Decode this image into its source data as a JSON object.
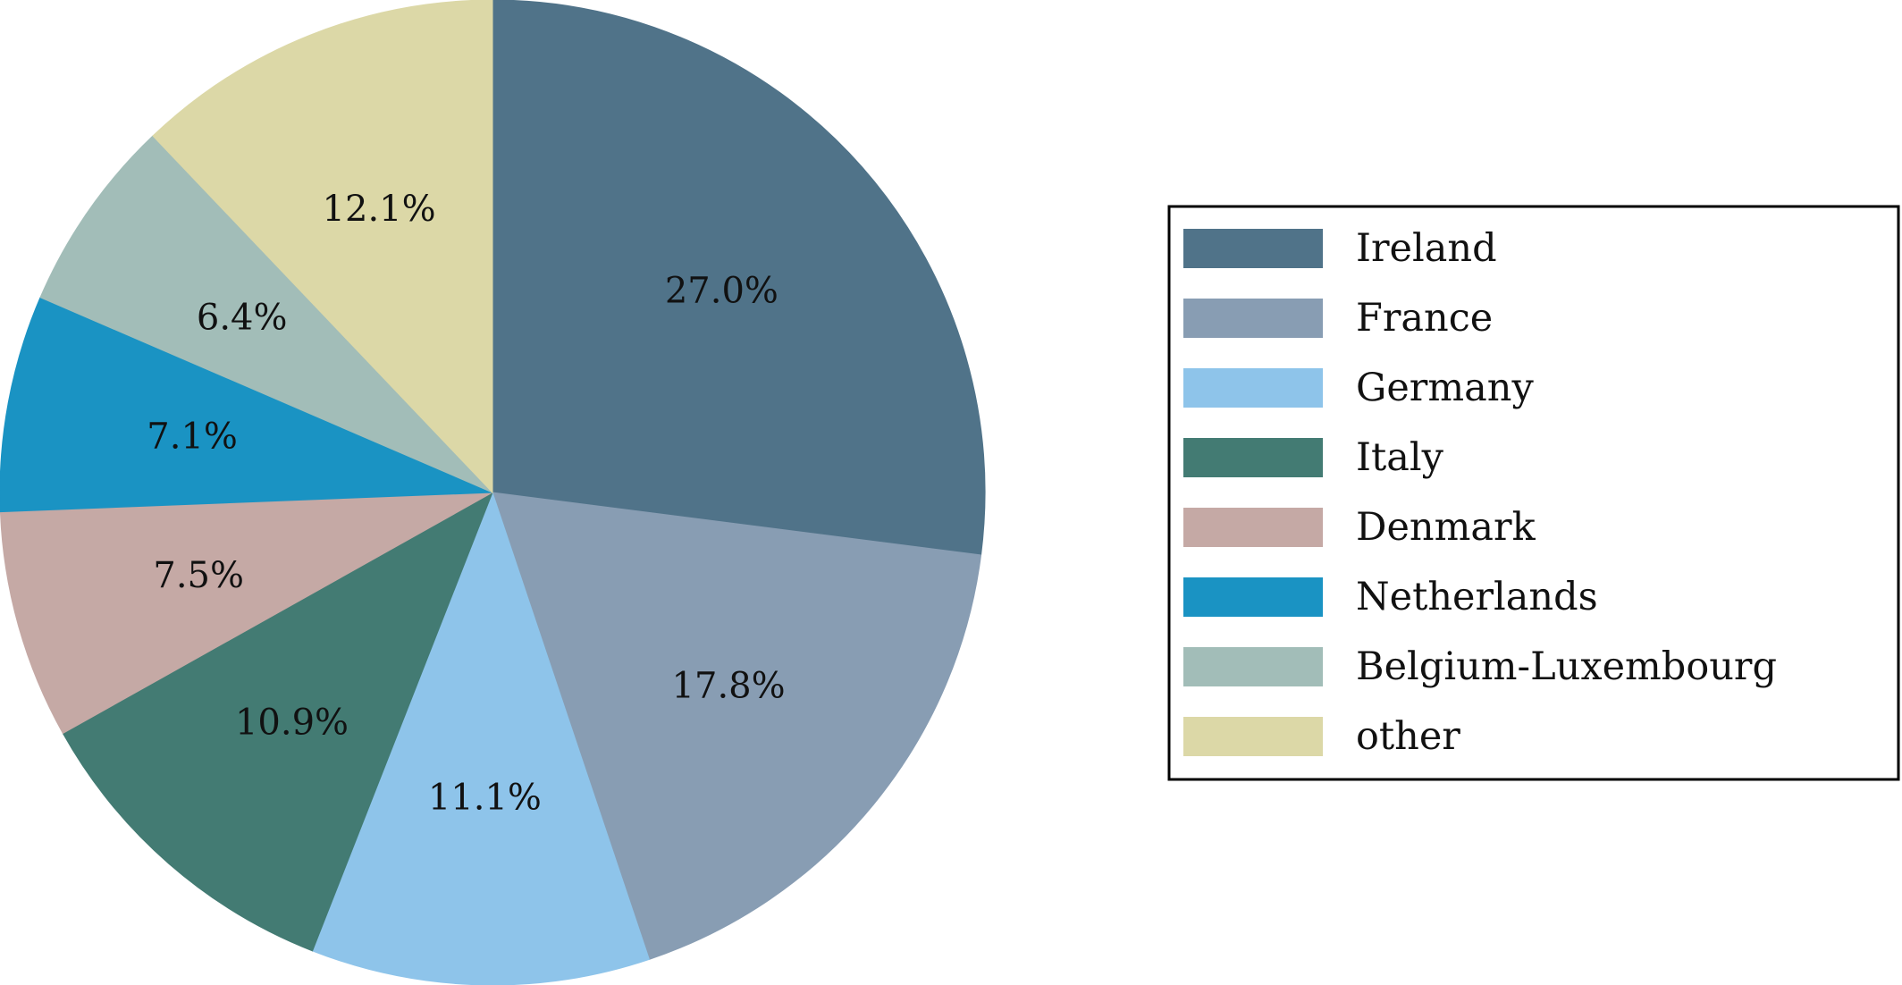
{
  "chart_data": {
    "type": "pie",
    "title": "",
    "start_angle_deg": 0,
    "direction": "clockwise",
    "legend_position": "right",
    "slices": [
      {
        "label": "Ireland",
        "value": 27.0,
        "display": "27.0%",
        "color": "#507389"
      },
      {
        "label": "France",
        "value": 17.8,
        "display": "17.8%",
        "color": "#889db3"
      },
      {
        "label": "Germany",
        "value": 11.1,
        "display": "11.1%",
        "color": "#8ec4ea"
      },
      {
        "label": "Italy",
        "value": 10.9,
        "display": "10.9%",
        "color": "#437b73"
      },
      {
        "label": "Denmark",
        "value": 7.5,
        "display": "7.5%",
        "color": "#c5a9a5"
      },
      {
        "label": "Netherlands",
        "value": 7.1,
        "display": "7.1%",
        "color": "#1a93c3"
      },
      {
        "label": "Belgium-Luxembourg",
        "value": 6.4,
        "display": "6.4%",
        "color": "#a2bdb8"
      },
      {
        "label": "other",
        "value": 12.1,
        "display": "12.1%",
        "color": "#dcd8a7"
      }
    ]
  }
}
